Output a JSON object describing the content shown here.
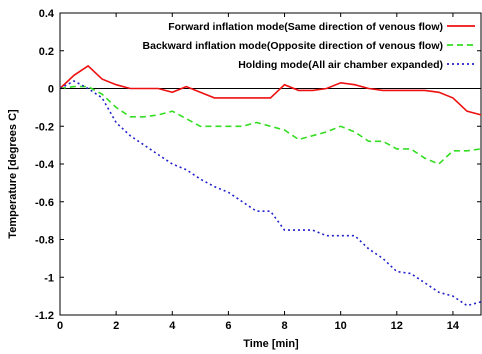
{
  "chart_data": {
    "type": "line",
    "title": "",
    "xlabel": "Time [min]",
    "ylabel": "Temperature [degrees C]",
    "xlim": [
      0,
      15
    ],
    "ylim": [
      -1.2,
      0.4
    ],
    "xticks": [
      0,
      2,
      4,
      6,
      8,
      10,
      12,
      14
    ],
    "yticks": [
      0.4,
      0.2,
      0,
      -0.2,
      -0.4,
      -0.6,
      -0.8,
      -1,
      -1.2
    ],
    "xtick_labels": [
      "0",
      "2",
      "4",
      "6",
      "8",
      "10",
      "12",
      "14"
    ],
    "ytick_labels": [
      "0.4",
      "0.2",
      "0",
      "-0.2",
      "-0.4",
      "-0.6",
      "-0.8",
      "-1",
      "-1.2"
    ],
    "zero_line": true,
    "grid": false,
    "legend_position": "top-right",
    "series": [
      {
        "name": "Forward inflation mode(Same direction of venous flow)",
        "color": "#ee1111",
        "style": "solid",
        "x": [
          0,
          0.5,
          1,
          1.5,
          2,
          2.5,
          3,
          3.5,
          4,
          4.5,
          5,
          5.5,
          6,
          6.5,
          7,
          7.5,
          8,
          8.5,
          9,
          9.5,
          10,
          10.5,
          11,
          11.5,
          12,
          12.5,
          13,
          13.5,
          14,
          14.5,
          15
        ],
        "y": [
          0,
          0.07,
          0.12,
          0.05,
          0.02,
          0,
          0,
          0,
          -0.02,
          0.01,
          -0.02,
          -0.05,
          -0.05,
          -0.05,
          -0.05,
          -0.05,
          0.02,
          -0.01,
          -0.01,
          0,
          0.03,
          0.02,
          0,
          -0.01,
          -0.01,
          -0.01,
          -0.01,
          -0.02,
          -0.05,
          -0.12,
          -0.14
        ]
      },
      {
        "name": "Backward inflation mode(Opposite direction of venous flow)",
        "color": "#33dd22",
        "style": "dashed",
        "x": [
          0,
          0.5,
          1,
          1.5,
          2,
          2.5,
          3,
          3.5,
          4,
          4.5,
          5,
          5.5,
          6,
          6.5,
          7,
          7.5,
          8,
          8.5,
          9,
          9.5,
          10,
          10.5,
          11,
          11.5,
          12,
          12.5,
          13,
          13.5,
          14,
          14.5,
          15
        ],
        "y": [
          0,
          0.01,
          0.01,
          -0.03,
          -0.1,
          -0.15,
          -0.15,
          -0.14,
          -0.12,
          -0.16,
          -0.2,
          -0.2,
          -0.2,
          -0.2,
          -0.18,
          -0.2,
          -0.22,
          -0.27,
          -0.25,
          -0.23,
          -0.2,
          -0.23,
          -0.28,
          -0.28,
          -0.32,
          -0.32,
          -0.37,
          -0.4,
          -0.33,
          -0.33,
          -0.32
        ]
      },
      {
        "name": "Holding mode(All air chamber expanded)",
        "color": "#2222cc",
        "style": "dotted",
        "x": [
          0,
          0.5,
          1,
          1.5,
          2,
          2.5,
          3,
          3.5,
          4,
          4.5,
          5,
          5.5,
          6,
          6.5,
          7,
          7.5,
          8,
          8.5,
          9,
          9.5,
          10,
          10.5,
          11,
          11.5,
          12,
          12.5,
          13,
          13.5,
          14,
          14.5,
          15
        ],
        "y": [
          0,
          0.04,
          0,
          -0.05,
          -0.18,
          -0.25,
          -0.3,
          -0.35,
          -0.4,
          -0.43,
          -0.48,
          -0.52,
          -0.55,
          -0.6,
          -0.65,
          -0.65,
          -0.75,
          -0.75,
          -0.75,
          -0.78,
          -0.78,
          -0.78,
          -0.85,
          -0.9,
          -0.97,
          -0.98,
          -1.03,
          -1.08,
          -1.1,
          -1.15,
          -1.13
        ]
      }
    ]
  }
}
